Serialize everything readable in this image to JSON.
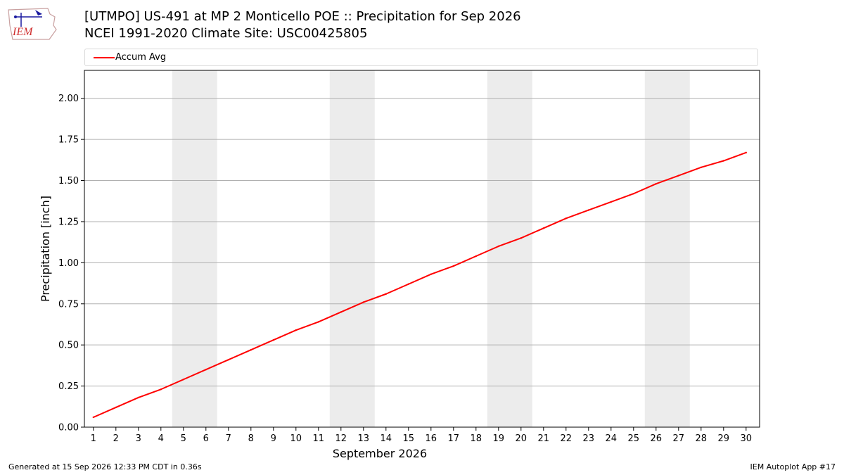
{
  "logo": {
    "text": "IEM"
  },
  "title": {
    "line1": "[UTMPO] US-491 at MP 2 Monticello POE  :: Precipitation for Sep 2026",
    "line2": "NCEI 1991-2020 Climate Site: USC00425805"
  },
  "footer": {
    "left": "Generated at 15 Sep 2026 12:33 PM CDT in 0.36s",
    "right": "IEM Autoplot App #17"
  },
  "chart_data": {
    "type": "line",
    "xlabel": "September 2026",
    "ylabel": "Precipitation [inch]",
    "xlim": [
      0.6,
      30.6
    ],
    "ylim": [
      0,
      2.17
    ],
    "yticks": [
      0.0,
      0.25,
      0.5,
      0.75,
      1.0,
      1.25,
      1.5,
      1.75,
      2.0
    ],
    "ytick_labels": [
      "0.00",
      "0.25",
      "0.50",
      "0.75",
      "1.00",
      "1.25",
      "1.50",
      "1.75",
      "2.00"
    ],
    "x": [
      1,
      2,
      3,
      4,
      5,
      6,
      7,
      8,
      9,
      10,
      11,
      12,
      13,
      14,
      15,
      16,
      17,
      18,
      19,
      20,
      21,
      22,
      23,
      24,
      25,
      26,
      27,
      28,
      29,
      30
    ],
    "grid": "horizontal",
    "legend": "top",
    "weekend_shading": [
      [
        5,
        6
      ],
      [
        12,
        13
      ],
      [
        19,
        20
      ],
      [
        26,
        27
      ]
    ],
    "series": [
      {
        "name": "Accum Avg",
        "color": "#ff0000",
        "values": [
          0.06,
          0.12,
          0.18,
          0.23,
          0.29,
          0.35,
          0.41,
          0.47,
          0.53,
          0.59,
          0.64,
          0.7,
          0.76,
          0.81,
          0.87,
          0.93,
          0.98,
          1.04,
          1.1,
          1.15,
          1.21,
          1.27,
          1.32,
          1.37,
          1.42,
          1.48,
          1.53,
          1.58,
          1.62,
          1.67
        ]
      }
    ]
  }
}
